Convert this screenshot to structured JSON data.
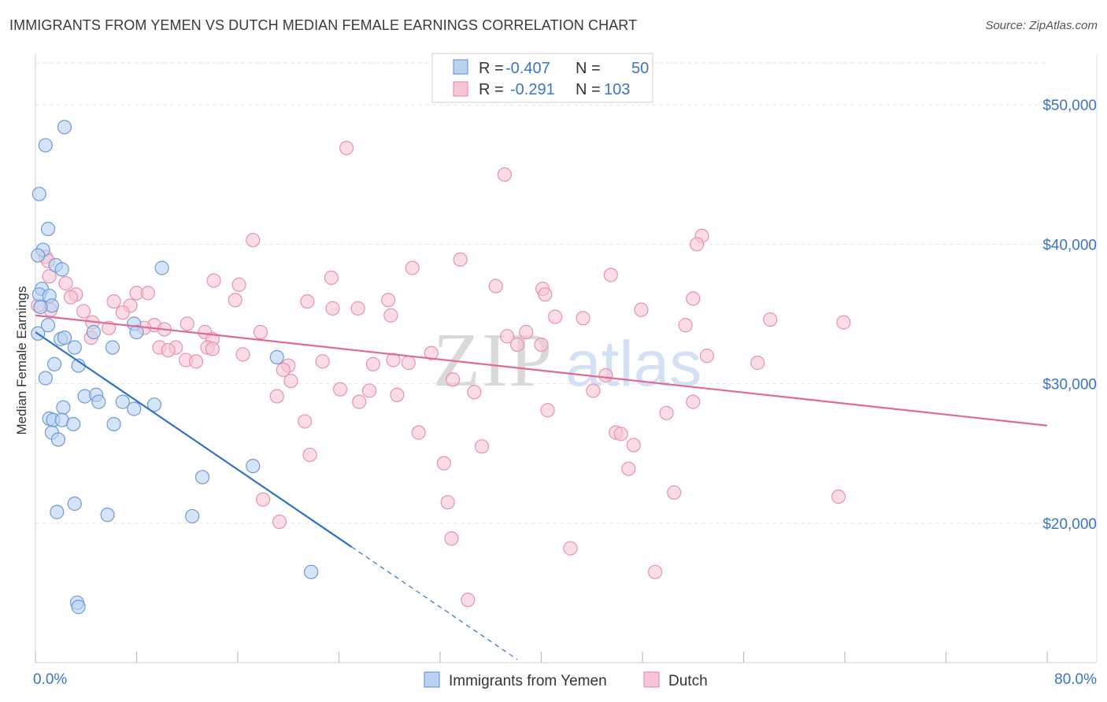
{
  "title": "IMMIGRANTS FROM YEMEN VS DUTCH MEDIAN FEMALE EARNINGS CORRELATION CHART",
  "source": "Source: ZipAtlas.com",
  "watermark": {
    "zip": "ZIP",
    "atlas": "atlas"
  },
  "colors": {
    "blue_fill": "#b9d2f2",
    "blue_stroke": "#6f9ad8",
    "blue_line": "#2f72c9",
    "pink_fill": "#f7c5d4",
    "pink_stroke": "#e892ae",
    "pink_line": "#e06a92",
    "accent_text": "#3a74c8",
    "grid": "#e6e6e6"
  },
  "legend": {
    "rows": [
      {
        "r_label": "R =",
        "r_value": "-0.407",
        "n_label": "N =",
        "n_value": "50"
      },
      {
        "r_label": "R =",
        "r_value": "-0.291",
        "n_label": "N =",
        "n_value": "103"
      }
    ]
  },
  "chart_data": {
    "type": "scatter",
    "title": "IMMIGRANTS FROM YEMEN VS DUTCH MEDIAN FEMALE EARNINGS CORRELATION CHART",
    "xlabel": "",
    "ylabel": "Median Female Earnings",
    "xlim": [
      0,
      80
    ],
    "ylim": [
      10000,
      53000
    ],
    "x_tick_labels": [
      {
        "value": 0,
        "label": "0.0%"
      },
      {
        "value": 80,
        "label": "80.0%"
      }
    ],
    "y_ticks": [
      {
        "value": 20000,
        "label": "$20,000"
      },
      {
        "value": 30000,
        "label": "$30,000"
      },
      {
        "value": 40000,
        "label": "$40,000"
      },
      {
        "value": 50000,
        "label": "$50,000"
      }
    ],
    "x_minor_ticks": [
      0,
      8,
      16,
      24,
      32,
      40,
      48,
      56,
      64,
      72,
      80
    ],
    "grid": true,
    "legend_position": "top-center",
    "series": [
      {
        "name": "Immigrants from Yemen",
        "color": "blue",
        "trend": {
          "x0": 0,
          "y0": 33700,
          "x1": 25,
          "y1": 18300,
          "dashed_to_x": 38.1
        },
        "points": [
          [
            2.3,
            48400
          ],
          [
            0.8,
            47100
          ],
          [
            0.3,
            43600
          ],
          [
            1.0,
            41100
          ],
          [
            0.6,
            39600
          ],
          [
            0.2,
            39200
          ],
          [
            1.6,
            38500
          ],
          [
            2.1,
            38200
          ],
          [
            10.0,
            38300
          ],
          [
            0.5,
            36800
          ],
          [
            0.3,
            36400
          ],
          [
            1.1,
            36300
          ],
          [
            1.3,
            35600
          ],
          [
            0.4,
            35500
          ],
          [
            1.0,
            34200
          ],
          [
            7.8,
            34300
          ],
          [
            4.6,
            33700
          ],
          [
            8.0,
            33700
          ],
          [
            2.0,
            33200
          ],
          [
            2.3,
            33300
          ],
          [
            3.1,
            32600
          ],
          [
            6.1,
            32600
          ],
          [
            19.1,
            31900
          ],
          [
            1.5,
            31400
          ],
          [
            3.4,
            31300
          ],
          [
            0.8,
            30400
          ],
          [
            3.9,
            29100
          ],
          [
            4.8,
            29200
          ],
          [
            5.0,
            28700
          ],
          [
            6.9,
            28700
          ],
          [
            9.4,
            28500
          ],
          [
            2.2,
            28300
          ],
          [
            7.8,
            28200
          ],
          [
            1.1,
            27500
          ],
          [
            1.4,
            27400
          ],
          [
            2.1,
            27400
          ],
          [
            3.0,
            27100
          ],
          [
            6.2,
            27100
          ],
          [
            1.3,
            26500
          ],
          [
            1.8,
            26000
          ],
          [
            17.2,
            24100
          ],
          [
            13.2,
            23300
          ],
          [
            3.1,
            21400
          ],
          [
            1.7,
            20800
          ],
          [
            5.7,
            20600
          ],
          [
            12.4,
            20500
          ],
          [
            21.8,
            16500
          ],
          [
            3.3,
            14300
          ],
          [
            3.4,
            14000
          ],
          [
            0.2,
            33600
          ]
        ]
      },
      {
        "name": "Dutch",
        "color": "pink",
        "trend": {
          "x0": 0,
          "y0": 34900,
          "x1": 80,
          "y1": 27000
        },
        "points": [
          [
            24.6,
            46900
          ],
          [
            37.1,
            45000
          ],
          [
            52.7,
            40600
          ],
          [
            52.3,
            40000
          ],
          [
            17.2,
            40300
          ],
          [
            0.8,
            39100
          ],
          [
            33.6,
            38900
          ],
          [
            29.8,
            38300
          ],
          [
            45.5,
            37800
          ],
          [
            23.4,
            37600
          ],
          [
            1.1,
            37700
          ],
          [
            14.1,
            37400
          ],
          [
            16.1,
            37100
          ],
          [
            2.4,
            37200
          ],
          [
            36.4,
            37000
          ],
          [
            40.1,
            36800
          ],
          [
            40.3,
            36400
          ],
          [
            8.0,
            36500
          ],
          [
            8.9,
            36500
          ],
          [
            3.2,
            36400
          ],
          [
            2.8,
            36200
          ],
          [
            15.8,
            36000
          ],
          [
            21.5,
            35900
          ],
          [
            27.9,
            36000
          ],
          [
            6.2,
            35900
          ],
          [
            7.5,
            35600
          ],
          [
            52.0,
            36100
          ],
          [
            23.5,
            35400
          ],
          [
            25.5,
            35400
          ],
          [
            47.9,
            35300
          ],
          [
            3.8,
            35200
          ],
          [
            6.9,
            35100
          ],
          [
            28.1,
            34900
          ],
          [
            41.1,
            34800
          ],
          [
            43.3,
            34700
          ],
          [
            58.1,
            34600
          ],
          [
            63.9,
            34400
          ],
          [
            4.5,
            34400
          ],
          [
            12.0,
            34300
          ],
          [
            9.4,
            34200
          ],
          [
            51.4,
            34200
          ],
          [
            5.8,
            34000
          ],
          [
            8.6,
            34000
          ],
          [
            10.2,
            33900
          ],
          [
            13.4,
            33700
          ],
          [
            17.8,
            33700
          ],
          [
            37.3,
            33400
          ],
          [
            38.8,
            33700
          ],
          [
            4.4,
            33300
          ],
          [
            14.0,
            33200
          ],
          [
            38.1,
            32800
          ],
          [
            40.0,
            32800
          ],
          [
            9.8,
            32600
          ],
          [
            11.1,
            32600
          ],
          [
            13.6,
            32600
          ],
          [
            14.0,
            32500
          ],
          [
            10.5,
            32400
          ],
          [
            16.4,
            32100
          ],
          [
            31.3,
            32200
          ],
          [
            53.1,
            32000
          ],
          [
            11.9,
            31700
          ],
          [
            12.7,
            31600
          ],
          [
            22.7,
            31600
          ],
          [
            29.5,
            31500
          ],
          [
            57.1,
            31500
          ],
          [
            20.0,
            31300
          ],
          [
            19.6,
            31000
          ],
          [
            26.7,
            31400
          ],
          [
            28.3,
            31700
          ],
          [
            45.1,
            30600
          ],
          [
            20.2,
            30200
          ],
          [
            33.0,
            30300
          ],
          [
            24.1,
            29600
          ],
          [
            26.4,
            29500
          ],
          [
            34.7,
            29400
          ],
          [
            44.1,
            29500
          ],
          [
            19.1,
            29100
          ],
          [
            28.6,
            29200
          ],
          [
            25.6,
            28700
          ],
          [
            52.0,
            28700
          ],
          [
            40.5,
            28100
          ],
          [
            49.9,
            27900
          ],
          [
            21.3,
            27300
          ],
          [
            30.3,
            26500
          ],
          [
            45.9,
            26500
          ],
          [
            46.3,
            26400
          ],
          [
            35.3,
            25500
          ],
          [
            47.3,
            25600
          ],
          [
            21.7,
            24900
          ],
          [
            32.3,
            24300
          ],
          [
            46.9,
            23900
          ],
          [
            50.5,
            22200
          ],
          [
            63.5,
            21900
          ],
          [
            18.0,
            21700
          ],
          [
            32.6,
            21500
          ],
          [
            19.3,
            20100
          ],
          [
            32.9,
            18900
          ],
          [
            42.3,
            18200
          ],
          [
            49.0,
            16500
          ],
          [
            34.2,
            14500
          ],
          [
            1.0,
            38800
          ],
          [
            0.2,
            35600
          ],
          [
            1.2,
            35300
          ]
        ]
      }
    ]
  },
  "bottom_legend": [
    {
      "label": "Immigrants from Yemen",
      "color": "blue"
    },
    {
      "label": "Dutch",
      "color": "pink"
    }
  ]
}
